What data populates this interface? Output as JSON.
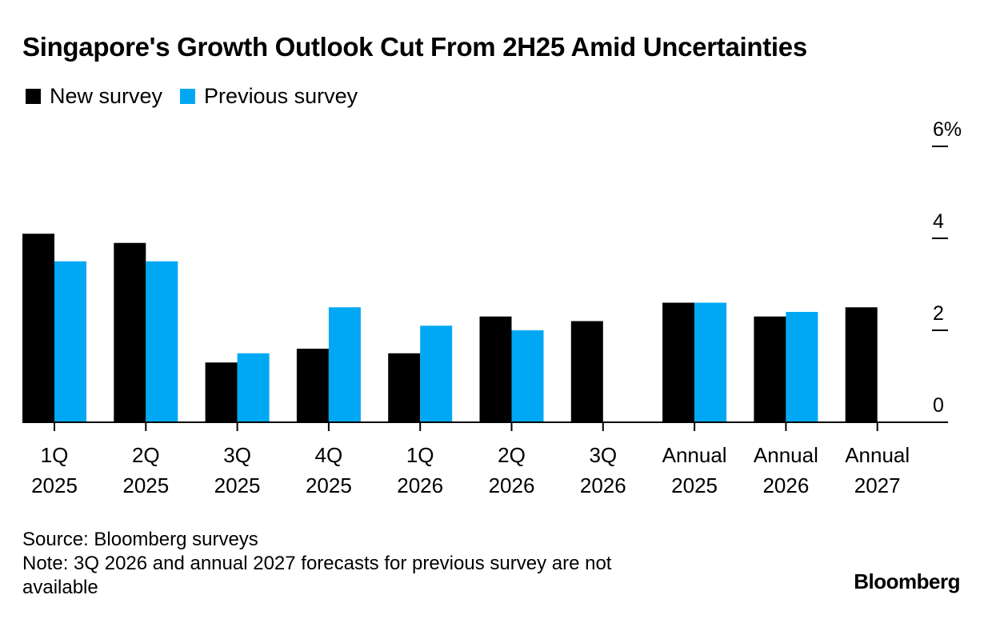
{
  "chart_data": {
    "type": "bar",
    "title": "Singapore's Growth Outlook Cut From 2H25 Amid Uncertainties",
    "categories": [
      [
        "1Q",
        "2025"
      ],
      [
        "2Q",
        "2025"
      ],
      [
        "3Q",
        "2025"
      ],
      [
        "4Q",
        "2025"
      ],
      [
        "1Q",
        "2026"
      ],
      [
        "2Q",
        "2026"
      ],
      [
        "3Q",
        "2026"
      ],
      [
        "Annual",
        "2025"
      ],
      [
        "Annual",
        "2026"
      ],
      [
        "Annual",
        "2027"
      ]
    ],
    "series": [
      {
        "name": "New survey",
        "color": "#000000",
        "values": [
          4.1,
          3.9,
          1.3,
          1.6,
          1.5,
          2.3,
          2.2,
          2.6,
          2.3,
          2.5
        ]
      },
      {
        "name": "Previous survey",
        "color": "#00a8f3",
        "values": [
          3.5,
          3.5,
          1.5,
          2.5,
          2.1,
          2.0,
          null,
          2.6,
          2.4,
          null
        ]
      }
    ],
    "y_ticks": [
      0,
      2,
      4,
      6
    ],
    "y_tick_labels": [
      "0",
      "2",
      "4",
      "6%"
    ],
    "ylim": [
      0,
      6
    ],
    "xlabel": "",
    "ylabel": "",
    "legend_position": "top-left",
    "axis_position": "right"
  },
  "footer": {
    "source": "Source: Bloomberg surveys",
    "note": "Note: 3Q 2026 and annual 2027 forecasts for previous survey are not available"
  },
  "brand": "Bloomberg"
}
